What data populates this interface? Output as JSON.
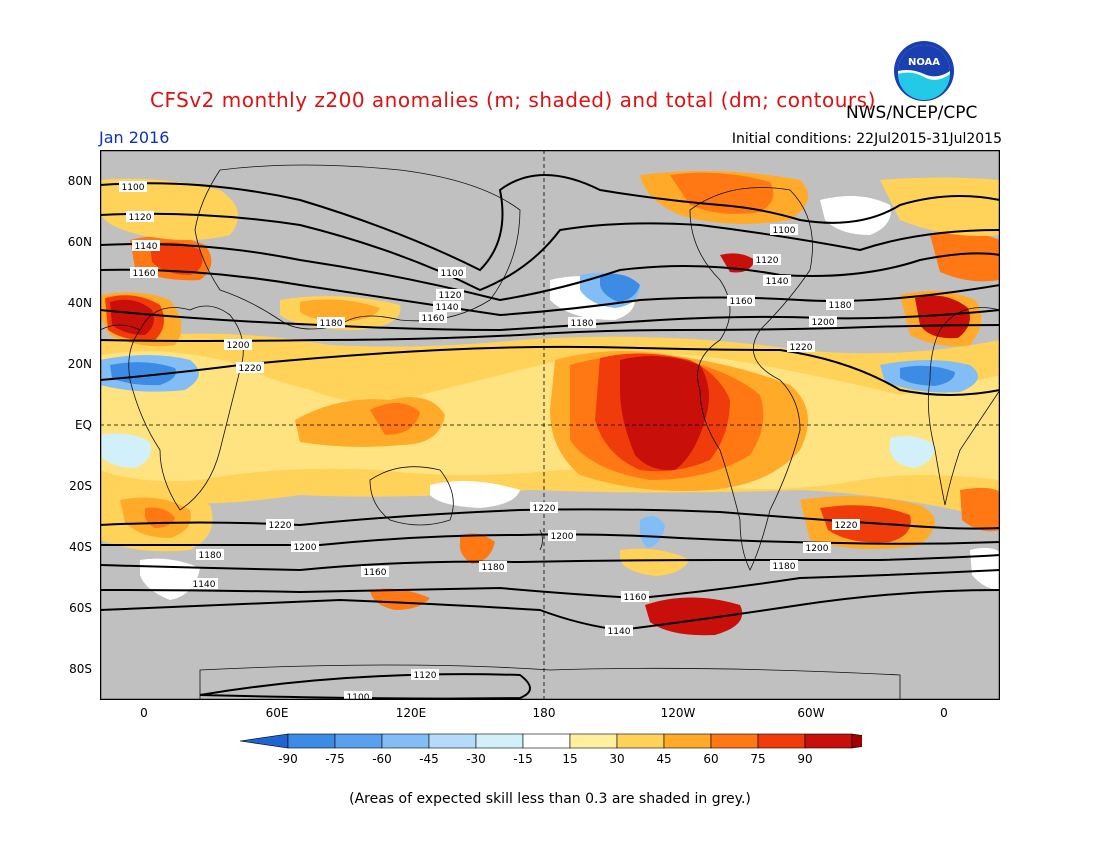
{
  "header": {
    "title": "CFSv2 monthly z200 anomalies (m; shaded) and total (dm; contours)",
    "agency": "NWS/NCEP/CPC",
    "month": "Jan 2016",
    "initial_conditions": "Initial conditions: 22Jul2015-31Jul2015"
  },
  "logo": {
    "text": "NOAA"
  },
  "axes": {
    "lat_labels": [
      "80N",
      "60N",
      "40N",
      "20N",
      "EQ",
      "20S",
      "40S",
      "60S",
      "80S"
    ],
    "lon_labels": [
      "0",
      "60E",
      "120E",
      "180",
      "120W",
      "60W",
      "0"
    ]
  },
  "colorbar": {
    "ticks": [
      "-90",
      "-75",
      "-60",
      "-45",
      "-30",
      "-15",
      "15",
      "30",
      "45",
      "60",
      "75",
      "90"
    ],
    "colors": [
      "#1e64d2",
      "#3c8ce6",
      "#5aa0f0",
      "#82bef5",
      "#b4dcfa",
      "#d2f0fa",
      "#ffffff",
      "#fff0a0",
      "#ffd25a",
      "#ffaa28",
      "#ff7814",
      "#f03c0a",
      "#c80f0a",
      "#a00000"
    ]
  },
  "contour_labels": [
    "1100",
    "1120",
    "1140",
    "1160",
    "1100",
    "1120",
    "1140",
    "1160",
    "1180",
    "1200",
    "1220",
    "1180",
    "1100",
    "1120",
    "1140",
    "1160",
    "1180",
    "1200",
    "1220",
    "1220",
    "1200",
    "1180",
    "1160",
    "1140",
    "1220",
    "1200",
    "1180",
    "1160",
    "1140",
    "1220",
    "1200",
    "1180",
    "1120",
    "1100"
  ],
  "footnote": "(Areas of expected skill less than 0.3 are shaded in grey.)"
}
